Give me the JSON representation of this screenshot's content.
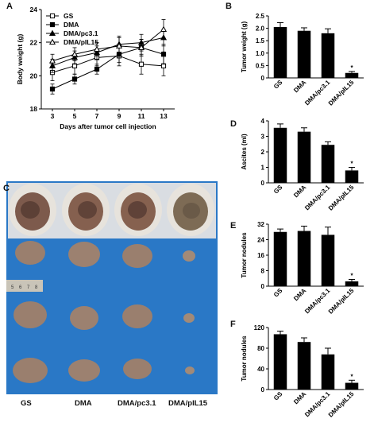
{
  "panels": {
    "A": {
      "letter": "A",
      "chart_data": {
        "type": "line",
        "xlabel": "Days after tumor cell injection",
        "ylabel": "Body weight (g)",
        "x": [
          3,
          5,
          7,
          9,
          11,
          13
        ],
        "xlim": [
          2,
          14
        ],
        "ylim": [
          18,
          24
        ],
        "yticks": [
          18,
          20,
          22,
          24
        ],
        "legend_position": "top-left",
        "series": [
          {
            "name": "GS",
            "marker": "square-open",
            "values": [
              20.2,
              20.6,
              21.1,
              21.2,
              20.7,
              20.6
            ],
            "errors": [
              0.5,
              0.5,
              0.5,
              0.6,
              0.6,
              0.6
            ]
          },
          {
            "name": "DMA",
            "marker": "square-filled",
            "values": [
              19.2,
              19.8,
              20.4,
              21.3,
              21.7,
              21.3
            ],
            "errors": [
              0.3,
              0.3,
              0.3,
              0.5,
              0.5,
              0.6
            ]
          },
          {
            "name": "DMA/pc3.1",
            "marker": "triangle-filled",
            "values": [
              20.6,
              21.1,
              21.4,
              21.9,
              22.0,
              22.3
            ],
            "errors": [
              0.4,
              0.4,
              0.4,
              0.5,
              0.5,
              0.5
            ]
          },
          {
            "name": "DMA/pIL15",
            "marker": "triangle-open",
            "values": [
              20.9,
              21.3,
              21.6,
              21.8,
              21.7,
              22.8
            ],
            "errors": [
              0.4,
              0.4,
              0.4,
              0.5,
              0.5,
              0.6
            ]
          }
        ],
        "annotations": [
          {
            "text": "*",
            "x": 13
          }
        ]
      }
    },
    "B": {
      "letter": "B",
      "chart_data": {
        "type": "bar",
        "ylabel": "Tumor weight (g)",
        "categories": [
          "GS",
          "DMA",
          "DMA/pc3.1",
          "DMA/pIL15"
        ],
        "values": [
          2.05,
          1.9,
          1.8,
          0.2
        ],
        "errors": [
          0.18,
          0.12,
          0.18,
          0.06
        ],
        "ylim": [
          0,
          2.5
        ],
        "yticks": [
          0,
          0.5,
          1.0,
          1.5,
          2.0,
          2.5
        ],
        "ytick_labels": [
          "0",
          "0.5",
          "1.0",
          "1.5",
          "2.0",
          "2.5"
        ],
        "star_on": [
          3
        ]
      }
    },
    "D": {
      "letter": "D",
      "chart_data": {
        "type": "bar",
        "ylabel": "Ascites (ml)",
        "categories": [
          "GS",
          "DMA",
          "DMA/pc3.1",
          "DMA/pIL15"
        ],
        "values": [
          3.55,
          3.3,
          2.45,
          0.8
        ],
        "errors": [
          0.25,
          0.25,
          0.2,
          0.2
        ],
        "ylim": [
          0,
          4
        ],
        "yticks": [
          0,
          1,
          2,
          3,
          4
        ],
        "ytick_labels": [
          "0",
          "1",
          "2",
          "3",
          "4"
        ],
        "star_on": [
          3
        ]
      }
    },
    "E": {
      "letter": "E",
      "chart_data": {
        "type": "bar",
        "ylabel": "Tumor nodules",
        "categories": [
          "GS",
          "DMA",
          "DMA/pc3.1",
          "DMA/pIL15"
        ],
        "values": [
          28,
          28.5,
          26.5,
          2.5
        ],
        "errors": [
          1.5,
          2.5,
          4.0,
          1.0
        ],
        "ylim": [
          0,
          32
        ],
        "yticks": [
          0,
          8,
          16,
          24,
          32
        ],
        "ytick_labels": [
          "0",
          "8",
          "16",
          "24",
          "32"
        ],
        "star_on": [
          3
        ]
      }
    },
    "F": {
      "letter": "F",
      "chart_data": {
        "type": "bar",
        "ylabel": "Tumor nodules",
        "categories": [
          "GS",
          "DMA",
          "DMA/pc3.1",
          "DMA/pIL15"
        ],
        "values": [
          107,
          92,
          68,
          13
        ],
        "errors": [
          6,
          8,
          12,
          5
        ],
        "ylim": [
          0,
          120
        ],
        "yticks": [
          0,
          40,
          80,
          120
        ],
        "ytick_labels": [
          "0",
          "40",
          "80",
          "120"
        ],
        "star_on": [
          3
        ]
      }
    },
    "C": {
      "letter": "C",
      "photo_labels": [
        "GS",
        "DMA",
        "DMA/pc3.1",
        "DMA/pIL15"
      ],
      "ruler_marks": [
        "5",
        "6",
        "7",
        "8"
      ],
      "colors": {
        "background": "#2a78c6",
        "tissue": "#9a7f6e",
        "fur": "#e7e3dc",
        "nodule": "#6f5044"
      }
    }
  }
}
